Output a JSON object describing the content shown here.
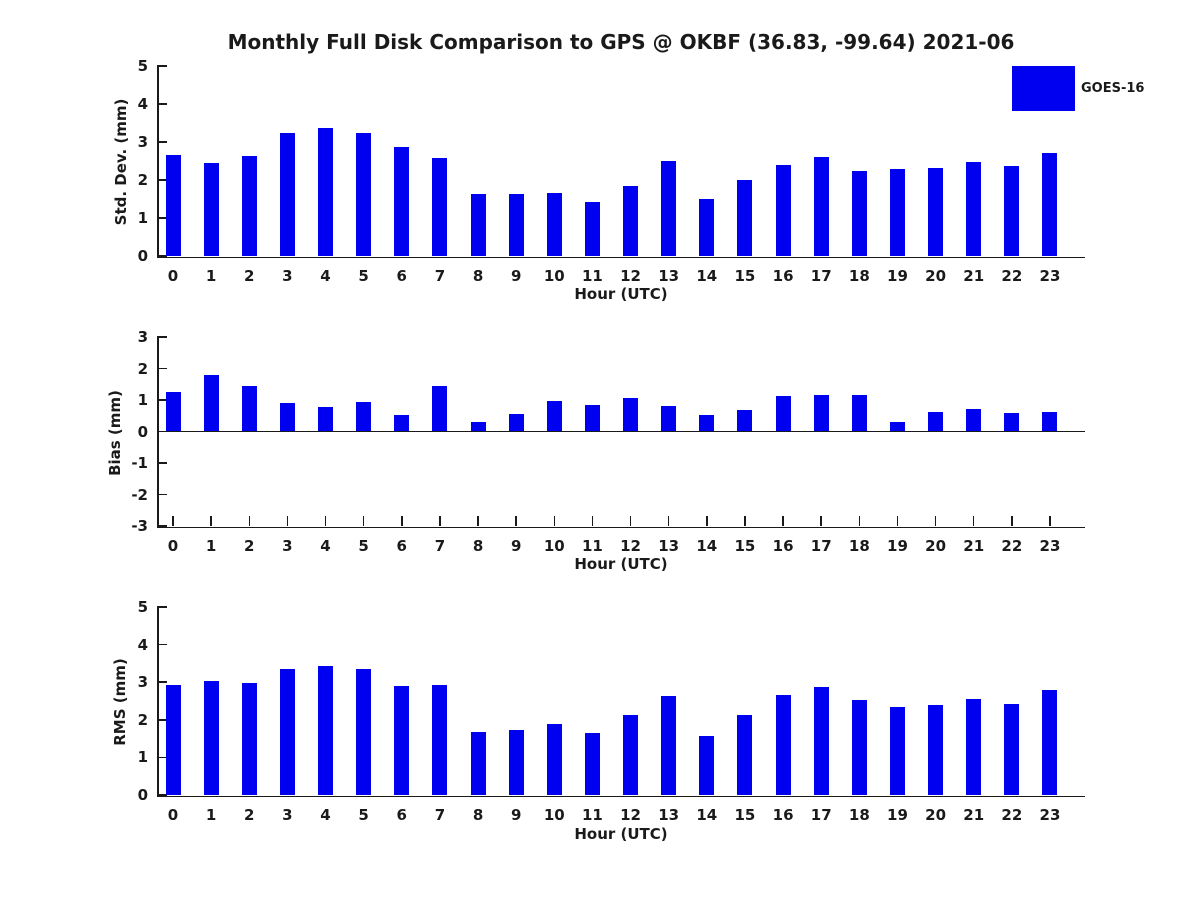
{
  "title": "Monthly Full Disk Comparison to GPS @ OKBF (36.83, -99.64) 2021-06",
  "legend": {
    "label": "GOES-16",
    "color": "#0000f0",
    "position": "top-right"
  },
  "bar_color": "#0000f0",
  "chart_data": [
    {
      "type": "bar",
      "series_name": "GOES-16",
      "ylabel": "Std. Dev. (mm)",
      "xlabel": "Hour (UTC)",
      "ylim": [
        0,
        5
      ],
      "yticks": [
        0,
        1,
        2,
        3,
        4,
        5
      ],
      "grid": false,
      "categories": [
        "0",
        "1",
        "2",
        "3",
        "4",
        "5",
        "6",
        "7",
        "8",
        "9",
        "10",
        "11",
        "12",
        "13",
        "14",
        "15",
        "16",
        "17",
        "18",
        "19",
        "20",
        "21",
        "22",
        "23"
      ],
      "values": [
        2.67,
        2.46,
        2.64,
        3.25,
        3.38,
        3.25,
        2.88,
        2.57,
        1.62,
        1.62,
        1.65,
        1.42,
        1.85,
        2.5,
        1.51,
        2.01,
        2.39,
        2.61,
        2.23,
        2.29,
        2.31,
        2.47,
        2.36,
        2.71
      ]
    },
    {
      "type": "bar",
      "series_name": "GOES-16",
      "ylabel": "Bias (mm)",
      "xlabel": "Hour (UTC)",
      "ylim": [
        -3,
        3
      ],
      "yticks": [
        -3,
        -2,
        -1,
        0,
        1,
        2,
        3
      ],
      "grid": false,
      "categories": [
        "0",
        "1",
        "2",
        "3",
        "4",
        "5",
        "6",
        "7",
        "8",
        "9",
        "10",
        "11",
        "12",
        "13",
        "14",
        "15",
        "16",
        "17",
        "18",
        "19",
        "20",
        "21",
        "22",
        "23"
      ],
      "values": [
        1.26,
        1.8,
        1.43,
        0.9,
        0.77,
        0.93,
        0.51,
        1.43,
        0.31,
        0.55,
        0.97,
        0.83,
        1.07,
        0.82,
        0.52,
        0.67,
        1.13,
        1.17,
        1.16,
        0.31,
        0.62,
        0.7,
        0.58,
        0.63
      ]
    },
    {
      "type": "bar",
      "series_name": "GOES-16",
      "ylabel": "RMS (mm)",
      "xlabel": "Hour (UTC)",
      "ylim": [
        0,
        5
      ],
      "yticks": [
        0,
        1,
        2,
        3,
        4,
        5
      ],
      "grid": false,
      "categories": [
        "0",
        "1",
        "2",
        "3",
        "4",
        "5",
        "6",
        "7",
        "8",
        "9",
        "10",
        "11",
        "12",
        "13",
        "14",
        "15",
        "16",
        "17",
        "18",
        "19",
        "20",
        "21",
        "22",
        "23"
      ],
      "values": [
        2.93,
        3.04,
        2.98,
        3.35,
        3.42,
        3.35,
        2.91,
        2.93,
        1.67,
        1.72,
        1.9,
        1.64,
        2.13,
        2.62,
        1.58,
        2.13,
        2.65,
        2.86,
        2.52,
        2.34,
        2.39,
        2.55,
        2.42,
        2.78
      ]
    }
  ]
}
